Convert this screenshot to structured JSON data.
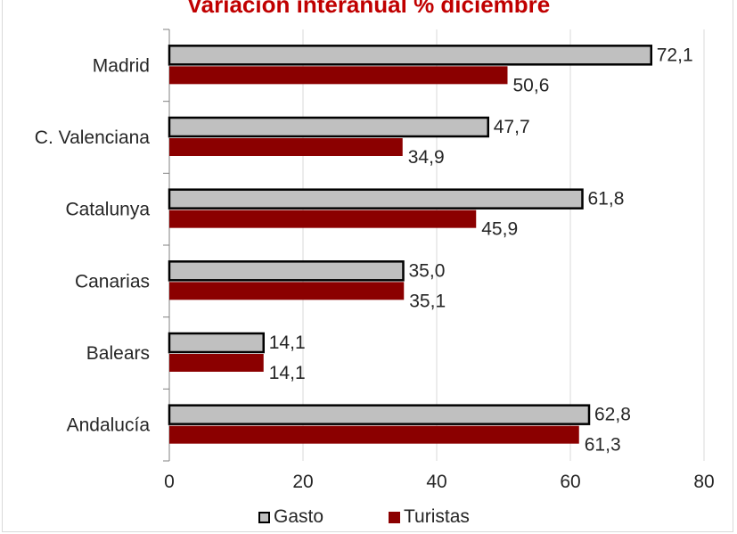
{
  "colors": {
    "gasto_fill": "#c0c0c0",
    "gasto_stroke": "#000000",
    "turistas_fill": "#8b0000",
    "grid": "#d9d9d9",
    "title": "#c00000",
    "text": "#262626"
  },
  "chart_data": {
    "type": "bar",
    "orientation": "horizontal",
    "title": "Variación interanual % diciembre",
    "categories": [
      "Madrid",
      "C. Valenciana",
      "Catalunya",
      "Canarias",
      "Balears",
      "Andalucía"
    ],
    "series": [
      {
        "name": "Gasto",
        "values": [
          72.1,
          47.7,
          61.8,
          35.0,
          14.1,
          62.8
        ],
        "labels": [
          "72,1",
          "47,7",
          "61,8",
          "35,0",
          "14,1",
          "62,8"
        ]
      },
      {
        "name": "Turistas",
        "values": [
          50.6,
          34.9,
          45.9,
          35.1,
          14.1,
          61.3
        ],
        "labels": [
          "50,6",
          "34,9",
          "45,9",
          "35,1",
          "14,1",
          "61,3"
        ]
      }
    ],
    "xlim": [
      0,
      80
    ],
    "xticks": [
      "0",
      "20",
      "40",
      "60",
      "80"
    ],
    "grid": "vertical",
    "legend": "bottom"
  }
}
